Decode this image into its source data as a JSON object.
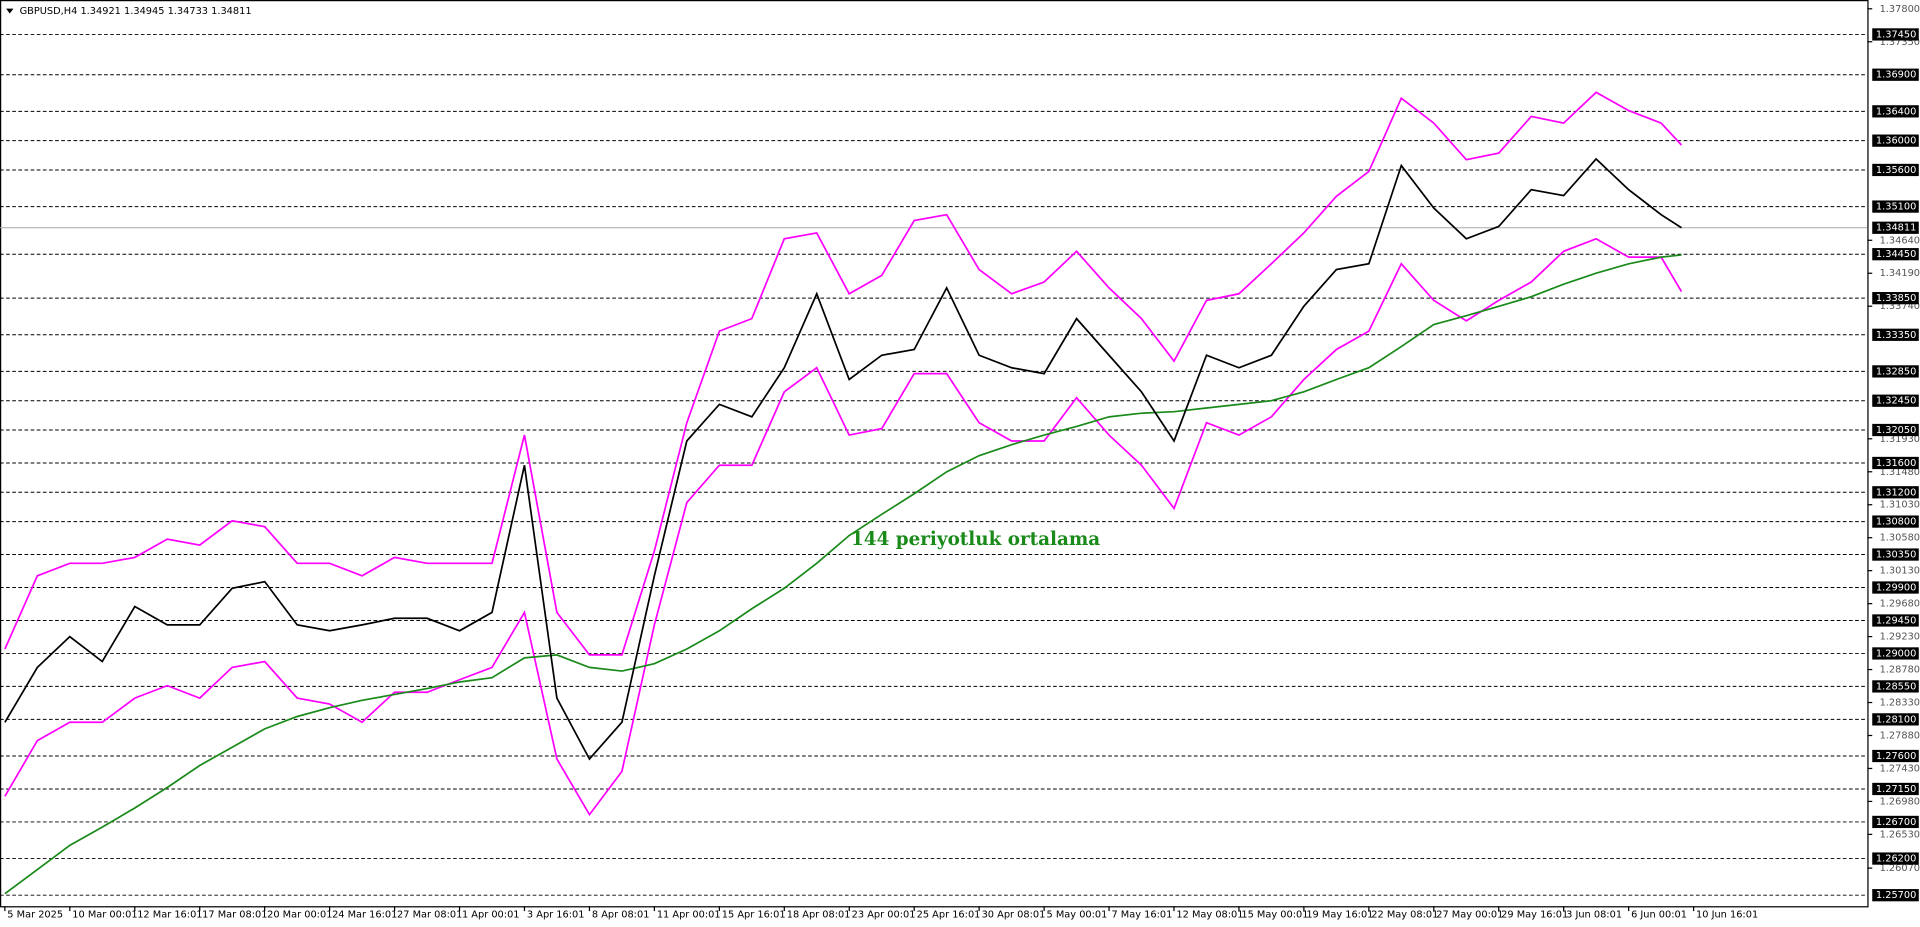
{
  "chart_data": {
    "type": "line",
    "title": "GBPUSD,H4  1.34921 1.34945 1.34733 1.34811",
    "annotation": "144 periyotluk ortalama",
    "annotation_color": "#1a8a1a",
    "x": [
      0,
      8,
      16,
      24,
      32,
      40,
      48,
      56,
      64,
      72,
      80,
      88,
      96,
      104,
      112,
      120,
      128,
      136,
      144,
      152,
      160,
      168,
      176,
      184,
      192,
      200,
      208,
      216,
      224,
      232,
      240,
      248,
      256,
      264,
      272,
      280,
      288,
      296,
      304,
      312,
      320,
      328,
      336,
      344,
      352,
      360,
      368,
      376,
      384,
      392,
      400,
      408,
      413
    ],
    "xlim": [
      -1.2,
      458.8
    ],
    "xticks": [
      {
        "value": 0,
        "label": "5 Mar 2025"
      },
      {
        "value": 16,
        "label": "10 Mar 00:01"
      },
      {
        "value": 32,
        "label": "12 Mar 16:01"
      },
      {
        "value": 48,
        "label": "17 Mar 08:01"
      },
      {
        "value": 64,
        "label": "20 Mar 00:01"
      },
      {
        "value": 80,
        "label": "24 Mar 16:01"
      },
      {
        "value": 96,
        "label": "27 Mar 08:01"
      },
      {
        "value": 112,
        "label": "1 Apr 00:01"
      },
      {
        "value": 128,
        "label": "3 Apr 16:01"
      },
      {
        "value": 144,
        "label": "8 Apr 08:01"
      },
      {
        "value": 160,
        "label": "11 Apr 00:01"
      },
      {
        "value": 176,
        "label": "15 Apr 16:01"
      },
      {
        "value": 192,
        "label": "18 Apr 08:01"
      },
      {
        "value": 208,
        "label": "23 Apr 00:01"
      },
      {
        "value": 224,
        "label": "25 Apr 16:01"
      },
      {
        "value": 240,
        "label": "30 Apr 08:01"
      },
      {
        "value": 256,
        "label": "5 May 00:01"
      },
      {
        "value": 272,
        "label": "7 May 16:01"
      },
      {
        "value": 288,
        "label": "12 May 08:01"
      },
      {
        "value": 304,
        "label": "15 May 00:01"
      },
      {
        "value": 320,
        "label": "19 May 16:01"
      },
      {
        "value": 336,
        "label": "22 May 08:01"
      },
      {
        "value": 352,
        "label": "27 May 00:01"
      },
      {
        "value": 368,
        "label": "29 May 16:01"
      },
      {
        "value": 384,
        "label": "3 Jun 08:01"
      },
      {
        "value": 400,
        "label": "6 Jun 00:01"
      },
      {
        "value": 416,
        "label": "10 Jun 16:01"
      }
    ],
    "ylim": [
      1.2555,
      1.3792
    ],
    "yticks": [
      {
        "value": 1.378,
        "label": "1.37800"
      },
      {
        "value": 1.3735,
        "label": "1.37350"
      },
      {
        "value": 1.3464,
        "label": "1.34640"
      },
      {
        "value": 1.3419,
        "label": "1.34190"
      },
      {
        "value": 1.3374,
        "label": "1.33740"
      },
      {
        "value": 1.3193,
        "label": "1.31930"
      },
      {
        "value": 1.3148,
        "label": "1.31480"
      },
      {
        "value": 1.3103,
        "label": "1.31030"
      },
      {
        "value": 1.3058,
        "label": "1.30580"
      },
      {
        "value": 1.3013,
        "label": "1.30130"
      },
      {
        "value": 1.2968,
        "label": "1.29680"
      },
      {
        "value": 1.2923,
        "label": "1.29230"
      },
      {
        "value": 1.2878,
        "label": "1.28780"
      },
      {
        "value": 1.2833,
        "label": "1.28330"
      },
      {
        "value": 1.2788,
        "label": "1.27880"
      },
      {
        "value": 1.2743,
        "label": "1.27430"
      },
      {
        "value": 1.2698,
        "label": "1.26980"
      },
      {
        "value": 1.2653,
        "label": "1.26530"
      },
      {
        "value": 1.2607,
        "label": "1.26070"
      }
    ],
    "levels": [
      {
        "value": 1.3745,
        "label": "1.37450"
      },
      {
        "value": 1.369,
        "label": "1.36900"
      },
      {
        "value": 1.364,
        "label": "1.36400"
      },
      {
        "value": 1.36,
        "label": "1.36000"
      },
      {
        "value": 1.356,
        "label": "1.35600"
      },
      {
        "value": 1.351,
        "label": "1.35100"
      },
      {
        "value": 1.3445,
        "label": "1.34450"
      },
      {
        "value": 1.3385,
        "label": "1.33850"
      },
      {
        "value": 1.3335,
        "label": "1.33350"
      },
      {
        "value": 1.3285,
        "label": "1.32850"
      },
      {
        "value": 1.3245,
        "label": "1.32450"
      },
      {
        "value": 1.3205,
        "label": "1.32050"
      },
      {
        "value": 1.316,
        "label": "1.31600"
      },
      {
        "value": 1.312,
        "label": "1.31200"
      },
      {
        "value": 1.308,
        "label": "1.30800"
      },
      {
        "value": 1.3035,
        "label": "1.30350"
      },
      {
        "value": 1.299,
        "label": "1.29900"
      },
      {
        "value": 1.2945,
        "label": "1.29450"
      },
      {
        "value": 1.29,
        "label": "1.29000"
      },
      {
        "value": 1.2855,
        "label": "1.28550"
      },
      {
        "value": 1.281,
        "label": "1.28100"
      },
      {
        "value": 1.276,
        "label": "1.27600"
      },
      {
        "value": 1.2715,
        "label": "1.27150"
      },
      {
        "value": 1.267,
        "label": "1.26700"
      },
      {
        "value": 1.262,
        "label": "1.26200"
      },
      {
        "value": 1.257,
        "label": "1.25700"
      }
    ],
    "current_price": {
      "value": 1.34811,
      "label": "1.34811"
    },
    "series": [
      {
        "color": "#ff00ff",
        "values": [
          1.2906,
          1.3006,
          1.3023,
          1.3023,
          1.3031,
          1.3056,
          1.3048,
          1.3081,
          1.3073,
          1.3023,
          1.3023,
          1.3006,
          1.3031,
          1.3023,
          1.3023,
          1.3023,
          1.3198,
          1.2956,
          1.2898,
          1.2898,
          1.304,
          1.3215,
          1.334,
          1.3357,
          1.3466,
          1.3474,
          1.3391,
          1.3416,
          1.3491,
          1.3499,
          1.3424,
          1.3391,
          1.3407,
          1.3449,
          1.3399,
          1.3357,
          1.3299,
          1.3382,
          1.3391,
          1.3432,
          1.3474,
          1.3524,
          1.3558,
          1.3658,
          1.3624,
          1.3574,
          1.3583,
          1.3633,
          1.3624,
          1.3666,
          1.3641,
          1.3624,
          1.3594
        ]
      },
      {
        "color": "#ff00ff",
        "values": [
          1.2705,
          1.2781,
          1.2806,
          1.2806,
          1.2839,
          1.2856,
          1.2839,
          1.2881,
          1.2889,
          1.2839,
          1.2831,
          1.2806,
          1.2847,
          1.2847,
          1.2864,
          1.2881,
          1.2956,
          1.2756,
          1.268,
          1.2739,
          1.2939,
          1.3106,
          1.3157,
          1.3157,
          1.3257,
          1.329,
          1.3198,
          1.3207,
          1.3282,
          1.3282,
          1.3215,
          1.319,
          1.319,
          1.3249,
          1.3198,
          1.3157,
          1.3098,
          1.3215,
          1.3198,
          1.3223,
          1.3274,
          1.3315,
          1.334,
          1.3432,
          1.3382,
          1.3354,
          1.3382,
          1.3407,
          1.3449,
          1.3466,
          1.3441,
          1.3441,
          1.3394
        ]
      },
      {
        "color": "#1a8a1a",
        "values": [
          1.2572,
          1.2605,
          1.2638,
          1.2663,
          1.2689,
          1.2717,
          1.2747,
          1.2772,
          1.2797,
          1.2814,
          1.2826,
          1.2836,
          1.2844,
          1.2852,
          1.2861,
          1.2867,
          1.2894,
          1.2898,
          1.2881,
          1.2876,
          1.2886,
          1.2906,
          1.2931,
          1.2961,
          1.2989,
          1.3023,
          1.3061,
          1.309,
          1.3118,
          1.3148,
          1.317,
          1.3185,
          1.3198,
          1.321,
          1.3223,
          1.3228,
          1.323,
          1.3235,
          1.324,
          1.3245,
          1.3257,
          1.3274,
          1.329,
          1.3319,
          1.3349,
          1.3361,
          1.3374,
          1.3387,
          1.3404,
          1.3419,
          1.3432,
          1.3441,
          1.3444
        ]
      },
      {
        "color": "#000000",
        "values": [
          1.2806,
          1.2881,
          1.2923,
          1.2889,
          1.2964,
          1.2939,
          1.2939,
          1.2989,
          1.2998,
          1.2939,
          1.2931,
          1.2939,
          1.2948,
          1.2948,
          1.2931,
          1.2956,
          1.3157,
          1.2839,
          1.2756,
          1.2806,
          1.3006,
          1.319,
          1.324,
          1.3223,
          1.329,
          1.3391,
          1.3274,
          1.3307,
          1.3315,
          1.3399,
          1.3307,
          1.329,
          1.3282,
          1.3357,
          1.3307,
          1.3257,
          1.319,
          1.3307,
          1.329,
          1.3307,
          1.3374,
          1.3424,
          1.3432,
          1.3566,
          1.3508,
          1.3466,
          1.3483,
          1.3533,
          1.3525,
          1.3575,
          1.3533,
          1.3499,
          1.3481
        ]
      }
    ]
  }
}
